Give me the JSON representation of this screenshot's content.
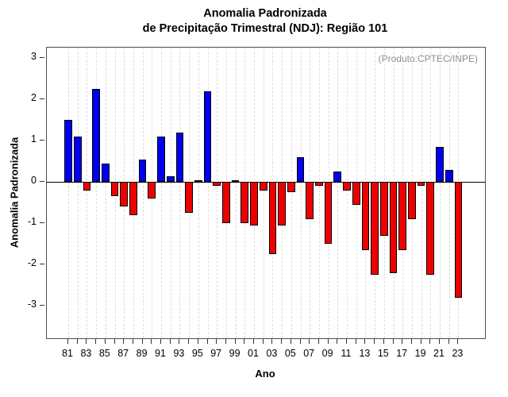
{
  "chart_data": {
    "type": "bar",
    "title_line1": "Anomalia Padronizada",
    "title_line2": "de Precipitação Trimestral (NDJ): Região 101",
    "annotation": "(Produto:CPTEC/INPE)",
    "xlabel": "Ano",
    "ylabel": "Anomalia Padronizada",
    "ylim": [
      -3.5,
      3.5
    ],
    "yticks": [
      3,
      2,
      1,
      0,
      -1,
      -2,
      -3
    ],
    "grid": "vertical-dashed-per-year",
    "legend_position": "none",
    "positive_color": "#0000ee",
    "negative_color": "#ee0000",
    "bar_border_color": "#000000",
    "x_tick_labels_shown": [
      "81",
      "83",
      "85",
      "87",
      "89",
      "91",
      "93",
      "95",
      "97",
      "99",
      "01",
      "03",
      "05",
      "07",
      "09",
      "11",
      "13",
      "15",
      "17",
      "19",
      "21",
      "23"
    ],
    "years": [
      1981,
      1982,
      1983,
      1984,
      1985,
      1986,
      1987,
      1988,
      1989,
      1990,
      1991,
      1992,
      1993,
      1994,
      1995,
      1996,
      1997,
      1998,
      1999,
      2000,
      2001,
      2002,
      2003,
      2004,
      2005,
      2006,
      2007,
      2008,
      2009,
      2010,
      2011,
      2012,
      2013,
      2014,
      2015,
      2016,
      2017,
      2018,
      2019,
      2020,
      2021,
      2022,
      2023
    ],
    "values": [
      1.5,
      1.1,
      -0.2,
      2.25,
      0.45,
      -0.35,
      -0.6,
      -0.8,
      0.55,
      -0.4,
      1.1,
      0.15,
      1.2,
      -0.75,
      0.05,
      2.2,
      -0.1,
      -1.0,
      0.05,
      -1.0,
      -1.05,
      -0.2,
      -1.75,
      -1.05,
      -0.25,
      0.6,
      -0.9,
      -0.1,
      -1.5,
      0.25,
      -0.2,
      -0.55,
      -1.65,
      -2.25,
      -1.3,
      -2.2,
      -1.65,
      -0.9,
      -0.1,
      -2.25,
      0.85,
      0.3,
      -2.8
    ]
  }
}
